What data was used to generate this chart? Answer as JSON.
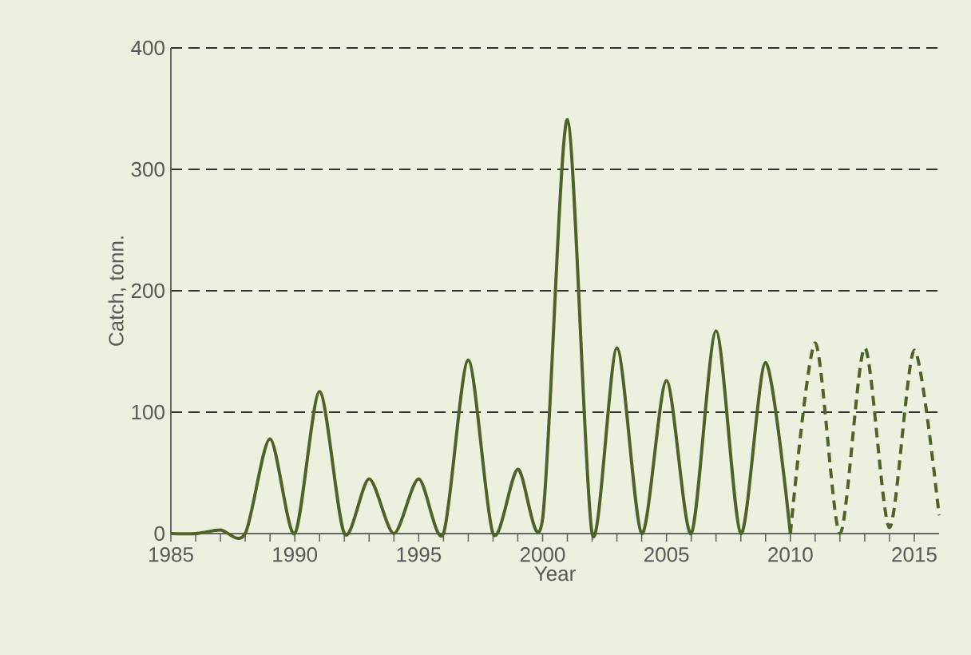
{
  "chart_data": {
    "type": "line",
    "xlabel": "Year",
    "ylabel": "Catch, tonn.",
    "xlim": [
      1985,
      2016
    ],
    "xticks": [
      1985,
      1990,
      1995,
      2000,
      2005,
      2010,
      2015
    ],
    "ylim": [
      0,
      400
    ],
    "yticks": [
      0,
      100,
      200,
      300,
      400
    ],
    "grid": "y",
    "marker": "none",
    "series": [
      {
        "color": "#4f6228",
        "line_style": "solid",
        "x": [
          1985,
          1986,
          1987,
          1988,
          1989,
          1990,
          1991,
          1992,
          1993,
          1994,
          1995,
          1996,
          1997,
          1998,
          1999,
          2000,
          2001,
          2002,
          2003,
          2004,
          2005,
          2006,
          2007,
          2008,
          2009,
          2010
        ],
        "values": [
          0,
          0,
          3,
          0,
          78,
          0,
          117,
          0,
          45,
          0,
          45,
          0,
          143,
          0,
          53,
          12,
          341,
          0,
          153,
          0,
          126,
          0,
          167,
          0,
          141,
          0
        ]
      },
      {
        "color": "#4f6228",
        "line_style": "dashed",
        "x": [
          2010,
          2011,
          2012,
          2013,
          2014,
          2015,
          2016
        ],
        "values": [
          0,
          157,
          0,
          153,
          5,
          151,
          15
        ]
      }
    ]
  }
}
